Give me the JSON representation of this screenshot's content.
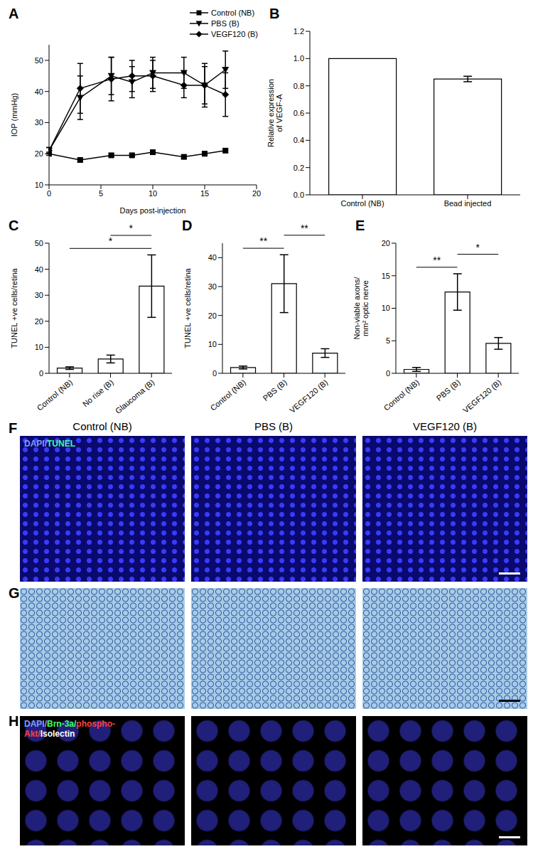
{
  "chart_data": [
    {
      "panel": "A",
      "type": "line",
      "x": [
        0,
        3,
        6,
        8,
        10,
        13,
        15,
        17
      ],
      "x_label": "Days post-injection",
      "y_label": "IOP (mmHg)",
      "xlim": [
        0,
        20
      ],
      "xticks": [
        0,
        5,
        10,
        15,
        20
      ],
      "ylim": [
        10,
        55
      ],
      "yticks": [
        10,
        20,
        30,
        40,
        50
      ],
      "legend": "upper right",
      "series": [
        {
          "name": "Control (NB)",
          "color": "#000000",
          "marker": "square",
          "values": [
            20,
            18,
            19.5,
            19.5,
            20.5,
            19,
            20,
            21
          ],
          "errors": [
            0.5,
            0.6,
            0.5,
            0.4,
            0.5,
            0.6,
            0.7,
            0.5
          ]
        },
        {
          "name": "PBS (B)",
          "color": "#000000",
          "marker": "triangle-down",
          "values": [
            21,
            38,
            45,
            43,
            46,
            46,
            42,
            47
          ],
          "errors": [
            1,
            7,
            6,
            5,
            5,
            5,
            7,
            6
          ]
        },
        {
          "name": "VEGF120 (B)",
          "color": "#000000",
          "marker": "diamond",
          "values": [
            21,
            41,
            44,
            45,
            45,
            42,
            42,
            39
          ],
          "errors": [
            1,
            8,
            7,
            5,
            5,
            4,
            6,
            7
          ]
        }
      ]
    },
    {
      "panel": "B",
      "type": "bar",
      "categories": [
        "Control (NB)",
        "Bead injected"
      ],
      "values": [
        1.0,
        0.85
      ],
      "errors": [
        0,
        0.02
      ],
      "y_label": "Relative expression of VEGF-A",
      "ylim": [
        0,
        1.2
      ],
      "yticks": [
        {
          "value": 0,
          "label": "0.0"
        },
        0.2,
        0.4,
        0.6,
        0.8,
        {
          "value": 1,
          "label": "1.0"
        },
        1.2
      ],
      "color": "#ffffff"
    },
    {
      "panel": "C",
      "type": "bar",
      "categories": [
        "Control (NB)",
        "No rise (B)",
        "Glaucoma (B)"
      ],
      "values": [
        2,
        5.5,
        33.5
      ],
      "errors": [
        0.5,
        1.5,
        12
      ],
      "y_label": "TUNEL +ve cells/retina",
      "ylim": [
        0,
        50
      ],
      "yticks": [
        0,
        10,
        20,
        30,
        40,
        50
      ],
      "color": "#ffffff",
      "significance": [
        {
          "from": 0,
          "to": 2,
          "label": "*"
        },
        {
          "from": 1,
          "to": 2,
          "label": "*"
        }
      ]
    },
    {
      "panel": "D",
      "type": "bar",
      "categories": [
        "Control (NB)",
        "PBS (B)",
        "VEGF120 (B)"
      ],
      "values": [
        2,
        31,
        7
      ],
      "errors": [
        0.5,
        10,
        1.5
      ],
      "y_label": "TUNEL +ve cells/retina",
      "ylim": [
        0,
        45
      ],
      "yticks": [
        0,
        10,
        20,
        30,
        40
      ],
      "color": "#ffffff",
      "significance": [
        {
          "from": 0,
          "to": 1,
          "label": "**"
        },
        {
          "from": 1,
          "to": 2,
          "label": "**"
        }
      ]
    },
    {
      "panel": "E",
      "type": "bar",
      "categories": [
        "Control (NB)",
        "PBS (B)",
        "VEGF120 (B)"
      ],
      "values": [
        0.6,
        12.5,
        4.6
      ],
      "errors": [
        0.3,
        2.8,
        0.9
      ],
      "y_label": "Non-viable axons/ mm² optic nerve",
      "ylim": [
        0,
        20
      ],
      "yticks": [
        0,
        5,
        10,
        15,
        20
      ],
      "color": "#ffffff",
      "significance": [
        {
          "from": 0,
          "to": 1,
          "label": "**"
        },
        {
          "from": 1,
          "to": 2,
          "label": "*"
        }
      ]
    }
  ],
  "image_panels": [
    {
      "panel": "F",
      "columns": [
        "Control (NB)",
        "PBS (B)",
        "VEGF120 (B)"
      ],
      "stain_label": [
        "DAPI/",
        "TUNEL"
      ]
    },
    {
      "panel": "G"
    },
    {
      "panel": "H",
      "stain_label": [
        "DAPI/",
        "Brn-3a/",
        "phospho-Akt/",
        "Isolectin"
      ]
    }
  ]
}
